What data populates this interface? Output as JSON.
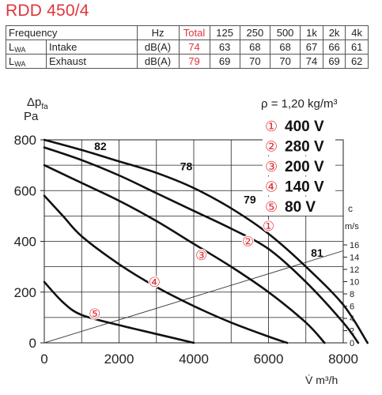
{
  "title": "RDD 450/4",
  "table": {
    "headers": [
      "Frequency",
      "Hz",
      "Total",
      "125",
      "250",
      "500",
      "1k",
      "2k",
      "4k"
    ],
    "rows": [
      {
        "symbol": "L",
        "sub": "WA",
        "label": "Intake",
        "unit": "dB(A)",
        "total": "74",
        "values": [
          "63",
          "68",
          "68",
          "67",
          "66",
          "61"
        ]
      },
      {
        "symbol": "L",
        "sub": "WA",
        "label": "Exhaust",
        "unit": "dB(A)",
        "total": "79",
        "values": [
          "69",
          "70",
          "70",
          "74",
          "69",
          "62"
        ]
      }
    ]
  },
  "colors": {
    "accent": "#e0343c",
    "curve": "#111111",
    "grid": "#222222"
  },
  "chart_data": {
    "type": "line",
    "ylabel_main": "Δp",
    "ylabel_sub": "fa",
    "ylabel_unit": "Pa",
    "xlabel": "V̇ m³/h",
    "density_label": "ρ = 1,20 kg/m³",
    "xlim": [
      0,
      8000
    ],
    "ylim": [
      0,
      800
    ],
    "xticks": [
      "0",
      "2000",
      "4000",
      "6000",
      "8000"
    ],
    "yticks": [
      "0",
      "200",
      "400",
      "600",
      "800"
    ],
    "velocity_axis": {
      "label_top": "c",
      "label_unit": "m/s",
      "ticks": [
        "0",
        "2",
        "4",
        "6",
        "8",
        "10",
        "12",
        "14",
        "16"
      ]
    },
    "series": [
      {
        "marker": "①",
        "name": "400 V",
        "x": [
          0,
          1000,
          2000,
          3000,
          4000,
          5000,
          6000,
          7000,
          8000,
          8650
        ],
        "y": [
          800,
          760,
          715,
          670,
          610,
          530,
          430,
          300,
          150,
          0
        ]
      },
      {
        "marker": "②",
        "name": "280 V",
        "x": [
          0,
          1000,
          2000,
          3000,
          4000,
          5000,
          6000,
          7000,
          8000,
          8400
        ],
        "y": [
          770,
          720,
          660,
          590,
          520,
          450,
          370,
          240,
          80,
          0
        ]
      },
      {
        "marker": "③",
        "name": "200 V",
        "x": [
          0,
          1000,
          2000,
          3000,
          4000,
          5000,
          6000,
          7000,
          7500
        ],
        "y": [
          700,
          630,
          560,
          480,
          390,
          300,
          200,
          80,
          0
        ]
      },
      {
        "marker": "④",
        "name": "140 V",
        "x": [
          0,
          500,
          1000,
          2000,
          3000,
          4000,
          5000,
          6000,
          6500
        ],
        "y": [
          580,
          500,
          420,
          310,
          220,
          145,
          80,
          25,
          0
        ]
      },
      {
        "marker": "⑤",
        "name": "80 V",
        "x": [
          0,
          500,
          1000,
          2000,
          3000,
          4000
        ],
        "y": [
          240,
          160,
          110,
          70,
          35,
          0
        ]
      }
    ],
    "marker_points": [
      {
        "label": "①",
        "x": 6000,
        "y": 460
      },
      {
        "label": "②",
        "x": 5450,
        "y": 400
      },
      {
        "label": "③",
        "x": 4200,
        "y": 345
      },
      {
        "label": "④",
        "x": 2950,
        "y": 240
      },
      {
        "label": "⑤",
        "x": 1350,
        "y": 115
      }
    ],
    "sound_labels": [
      {
        "label": "82",
        "x": 1500,
        "y": 760
      },
      {
        "label": "78",
        "x": 3800,
        "y": 680
      },
      {
        "label": "79",
        "x": 5500,
        "y": 550
      },
      {
        "label": "81",
        "x": 7300,
        "y": 340
      }
    ],
    "system_line": {
      "x": [
        0,
        8600
      ],
      "y": [
        0,
        390
      ]
    }
  }
}
